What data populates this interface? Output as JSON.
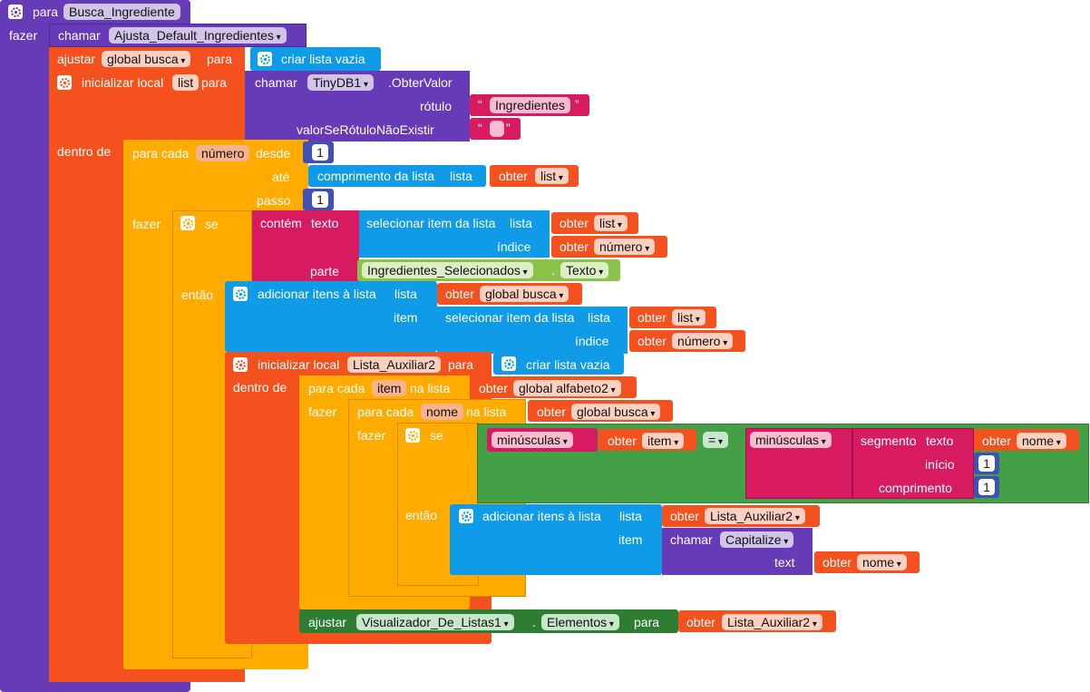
{
  "colors": {
    "procedure": "#673AB7",
    "variable": "#F4511E",
    "list": "#0F9BE8",
    "control": "#FFAB00",
    "text": "#D81B60",
    "math": "#3F51B5",
    "logic": "#43A047",
    "component": "#558B2F"
  },
  "proc": {
    "keyword": "para",
    "name": "Busca_Ingrediente",
    "do_label": "fazer"
  },
  "call1": {
    "keyword": "chamar",
    "name": "Ajusta_Default_Ingredientes"
  },
  "set1": {
    "keyword": "ajustar",
    "var": "global busca",
    "to": "para",
    "value": "criar lista vazia"
  },
  "init1": {
    "keyword": "inicializar local",
    "var": "list",
    "to": "para",
    "call_kw": "chamar",
    "component": "TinyDB1",
    "method": ".ObterValor",
    "tag_label": "rótulo",
    "tag_value": "Ingredientes",
    "default_label": "valorSeRótuloNãoExistir",
    "default_value": "",
    "in_label": "dentro de"
  },
  "for1": {
    "keyword": "para cada",
    "var": "número",
    "from_label": "desde",
    "from_value": "1",
    "to_label": "até",
    "length_label": "comprimento da lista",
    "list_label": "lista",
    "get_kw": "obter",
    "get_var": "list",
    "step_label": "passo",
    "step_value": "1",
    "do_label": "fazer"
  },
  "if1": {
    "keyword": "se",
    "contains_label": "contém",
    "text_label": "texto",
    "select_label": "selecionar item da lista",
    "list_label": "lista",
    "get_kw": "obter",
    "get_list": "list",
    "index_label": "índice",
    "get_index": "número",
    "part_label": "parte",
    "component": "Ingredientes_Selecionados",
    "property": "Texto",
    "then_label": "então"
  },
  "add1": {
    "keyword": "adicionar itens à lista",
    "list_label": "lista",
    "get_kw": "obter",
    "list_var": "global busca",
    "item_label": "item",
    "select_label": "selecionar item da lista",
    "select_list_label": "lista",
    "get_list": "list",
    "index_label": "índice",
    "get_index": "número"
  },
  "init2": {
    "keyword": "inicializar local",
    "var": "Lista_Auxiliar2",
    "to": "para",
    "value": "criar lista vazia",
    "in_label": "dentro de"
  },
  "for2": {
    "keyword": "para cada",
    "var": "item",
    "in_list": "na lista",
    "get_kw": "obter",
    "list": "global alfabeto2",
    "do_label": "fazer"
  },
  "for3": {
    "keyword": "para cada",
    "var": "nome",
    "in_list": "na lista",
    "get_kw": "obter",
    "list": "global busca",
    "do_label": "fazer"
  },
  "if2": {
    "keyword": "se",
    "lower1": "minúsculas",
    "get_kw": "obter",
    "get_item": "item",
    "op": "=",
    "lower2": "minúsculas",
    "segment_label": "segmento",
    "text_label": "texto",
    "get_name": "nome",
    "start_label": "início",
    "start_value": "1",
    "length_label": "comprimento",
    "length_value": "1",
    "then_label": "então"
  },
  "add2": {
    "keyword": "adicionar itens à lista",
    "list_label": "lista",
    "get_kw": "obter",
    "list_var": "Lista_Auxiliar2",
    "item_label": "item",
    "call_kw": "chamar",
    "proc": "Capitalize",
    "text_label": "text",
    "get_name": "nome"
  },
  "set2": {
    "keyword": "ajustar",
    "component": "Visualizador_De_Listas1",
    "property": "Elementos",
    "to": "para",
    "get_kw": "obter",
    "var": "Lista_Auxiliar2"
  }
}
